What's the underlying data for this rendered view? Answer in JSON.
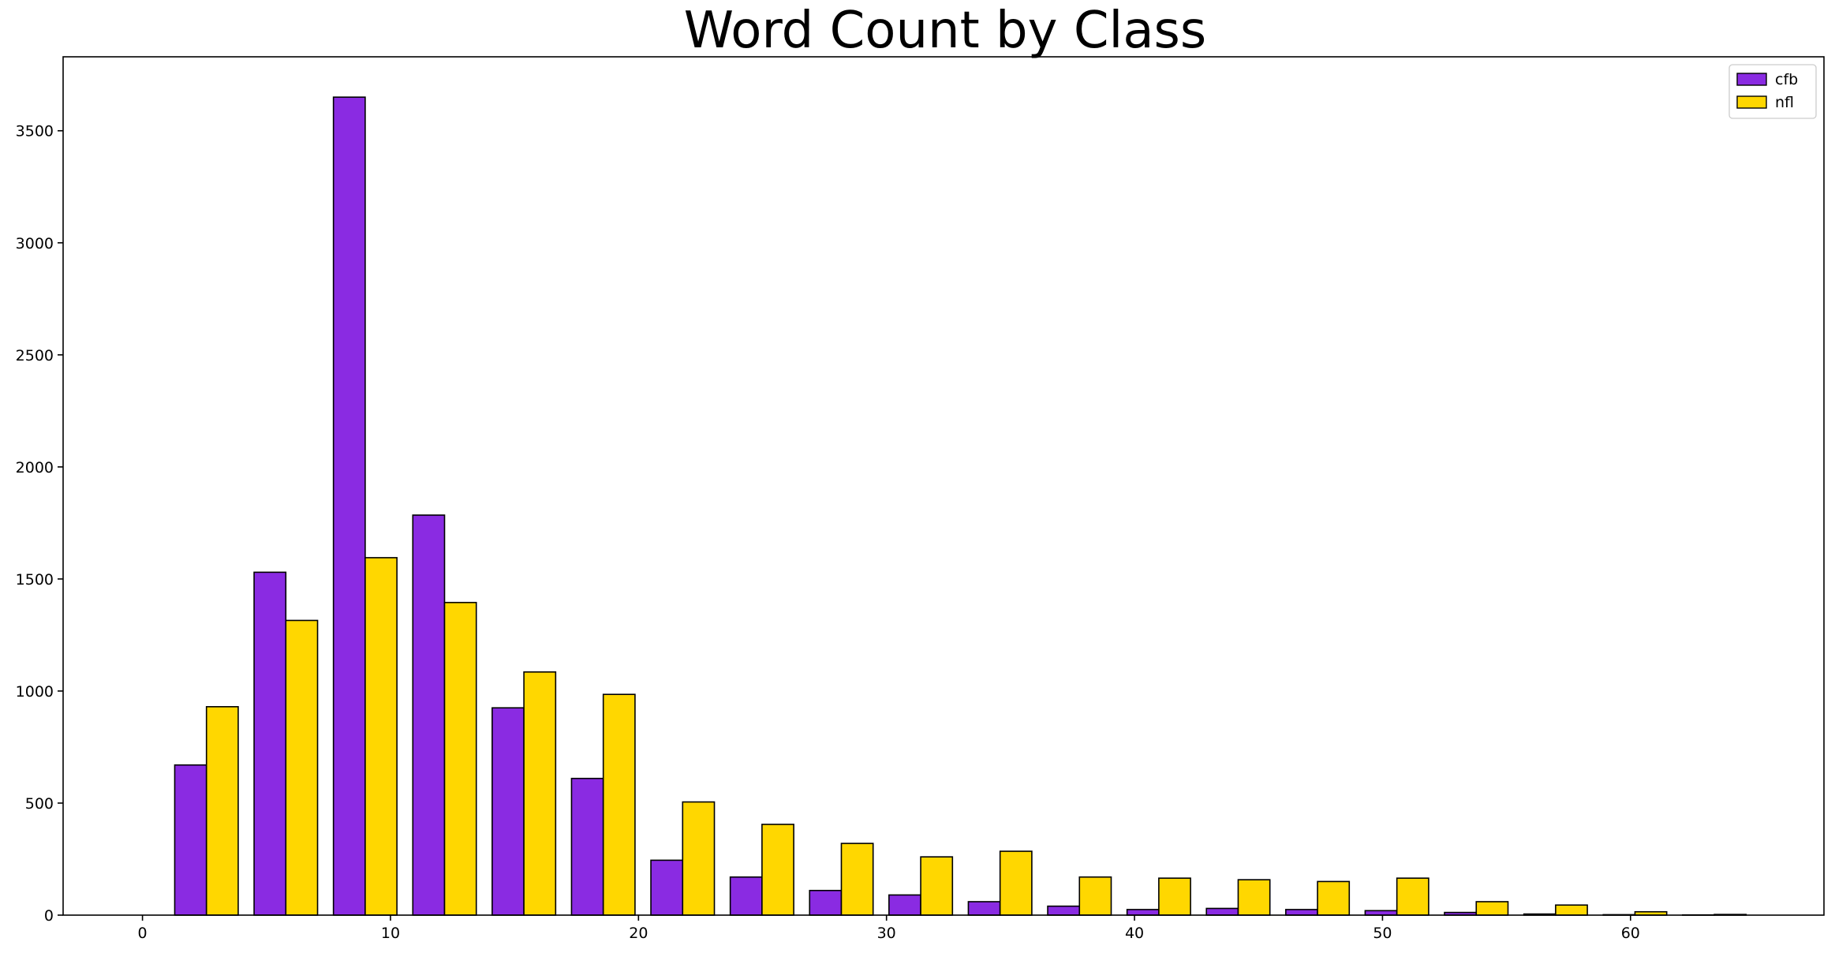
{
  "chart_data": {
    "type": "bar",
    "title": "Word Count by Class",
    "xlabel": "",
    "ylabel": "",
    "xlim": [
      -3.2,
      67.8
    ],
    "ylim": [
      0,
      3830
    ],
    "x_ticks": [
      0,
      10,
      20,
      30,
      40,
      50,
      60
    ],
    "y_ticks": [
      0,
      500,
      1000,
      1500,
      2000,
      2500,
      3000,
      3500
    ],
    "grid": false,
    "legend_position": "top-right",
    "bin_width": 3.2,
    "bin_starts": [
      1.3,
      4.5,
      7.7,
      10.9,
      14.1,
      17.3,
      20.5,
      23.7,
      26.9,
      30.1,
      33.3,
      36.5,
      39.7,
      42.9,
      46.1,
      49.3,
      52.5,
      55.7,
      58.9,
      62.1
    ],
    "series": [
      {
        "name": "cfb",
        "color": "#8a2be2",
        "values": [
          670,
          1530,
          3650,
          1785,
          925,
          610,
          245,
          170,
          110,
          90,
          60,
          40,
          25,
          30,
          25,
          20,
          12,
          5,
          2,
          1
        ]
      },
      {
        "name": "nfl",
        "color": "#ffd700",
        "values": [
          930,
          1315,
          1595,
          1395,
          1085,
          985,
          505,
          405,
          320,
          260,
          285,
          170,
          165,
          158,
          150,
          165,
          60,
          45,
          15,
          3
        ]
      }
    ]
  }
}
